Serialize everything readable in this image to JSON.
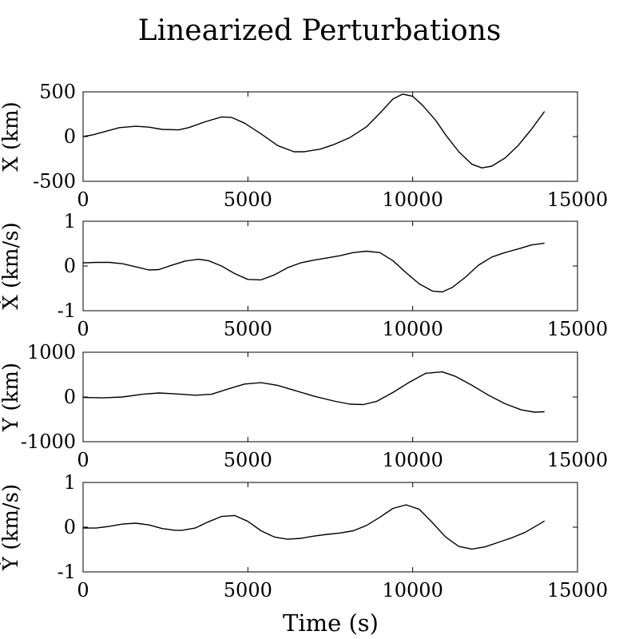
{
  "figure": {
    "title": "Linearized Perturbations",
    "xlabel": "Time (s)"
  },
  "chart_data": [
    {
      "type": "line",
      "ylabel": "X (km)",
      "xlim": [
        0,
        15000
      ],
      "ylim": [
        -500,
        500
      ],
      "xticks": [
        "0",
        "5000",
        "10000",
        "15000"
      ],
      "yticks": [
        "-500",
        "0",
        "500"
      ],
      "series": [
        {
          "color": "#000000",
          "x": [
            0,
            300,
            700,
            1100,
            1600,
            2000,
            2400,
            2900,
            3200,
            3700,
            4200,
            4500,
            4900,
            5400,
            5900,
            6400,
            6700,
            7200,
            7600,
            8100,
            8600,
            9000,
            9400,
            9700,
            10000,
            10300,
            10700,
            11000,
            11400,
            11800,
            12100,
            12400,
            12800,
            13200,
            13600,
            14000
          ],
          "y": [
            0,
            20,
            60,
            100,
            115,
            105,
            80,
            75,
            100,
            165,
            220,
            215,
            150,
            30,
            -100,
            -170,
            -170,
            -140,
            -90,
            -10,
            110,
            260,
            420,
            475,
            450,
            350,
            180,
            20,
            -170,
            -310,
            -350,
            -330,
            -240,
            -100,
            80,
            280
          ]
        }
      ]
    },
    {
      "type": "line",
      "ylabel": "Ẋ (km/s)",
      "xlim": [
        0,
        15000
      ],
      "ylim": [
        -1,
        1
      ],
      "xticks": [
        "0",
        "5000",
        "10000",
        "15000"
      ],
      "yticks": [
        "-1",
        "0",
        "1"
      ],
      "series": [
        {
          "color": "#000000",
          "x": [
            0,
            400,
            800,
            1200,
            1600,
            2000,
            2300,
            2700,
            3100,
            3500,
            3800,
            4200,
            4600,
            5000,
            5400,
            5800,
            6200,
            6600,
            7000,
            7400,
            7800,
            8200,
            8600,
            9000,
            9400,
            9800,
            10200,
            10600,
            10900,
            11200,
            11600,
            12000,
            12400,
            12800,
            13200,
            13600,
            14000
          ],
          "y": [
            0.07,
            0.08,
            0.08,
            0.05,
            -0.02,
            -0.09,
            -0.08,
            0.02,
            0.11,
            0.15,
            0.12,
            0.0,
            -0.17,
            -0.3,
            -0.31,
            -0.2,
            -0.04,
            0.07,
            0.13,
            0.18,
            0.23,
            0.3,
            0.33,
            0.3,
            0.12,
            -0.15,
            -0.4,
            -0.56,
            -0.58,
            -0.48,
            -0.25,
            0.02,
            0.2,
            0.3,
            0.38,
            0.47,
            0.51
          ]
        }
      ]
    },
    {
      "type": "line",
      "ylabel": "Y (km)",
      "xlim": [
        0,
        15000
      ],
      "ylim": [
        -1000,
        1000
      ],
      "xticks": [
        "0",
        "5000",
        "10000",
        "15000"
      ],
      "yticks": [
        "-1000",
        "0",
        "1000"
      ],
      "series": [
        {
          "color": "#000000",
          "x": [
            0,
            600,
            1200,
            1800,
            2300,
            2800,
            3400,
            3900,
            4400,
            4900,
            5400,
            5900,
            6400,
            7000,
            7600,
            8100,
            8500,
            8900,
            9400,
            9900,
            10400,
            10900,
            11300,
            11800,
            12300,
            12800,
            13300,
            13700,
            14000
          ],
          "y": [
            -10,
            -20,
            0,
            60,
            90,
            70,
            40,
            60,
            180,
            290,
            320,
            260,
            150,
            20,
            -90,
            -160,
            -170,
            -100,
            100,
            330,
            530,
            560,
            460,
            260,
            40,
            -150,
            -290,
            -340,
            -330
          ]
        }
      ]
    },
    {
      "type": "line",
      "ylabel": "Ẏ (km/s)",
      "xlim": [
        0,
        15000
      ],
      "ylim": [
        -1,
        1
      ],
      "xticks": [
        "0",
        "5000",
        "10000",
        "15000"
      ],
      "yticks": [
        "-1",
        "0",
        "1"
      ],
      "series": [
        {
          "color": "#000000",
          "x": [
            0,
            400,
            800,
            1200,
            1600,
            2000,
            2400,
            2800,
            3000,
            3400,
            3800,
            4200,
            4600,
            5000,
            5400,
            5800,
            6200,
            6600,
            7000,
            7400,
            7800,
            8200,
            8600,
            9000,
            9400,
            9800,
            10200,
            10600,
            11000,
            11400,
            11800,
            12200,
            12600,
            13000,
            13400,
            13800,
            14000
          ],
          "y": [
            -0.02,
            -0.02,
            0.02,
            0.07,
            0.09,
            0.05,
            -0.03,
            -0.07,
            -0.07,
            -0.02,
            0.12,
            0.24,
            0.26,
            0.13,
            -0.08,
            -0.22,
            -0.27,
            -0.25,
            -0.2,
            -0.16,
            -0.13,
            -0.08,
            0.04,
            0.22,
            0.42,
            0.5,
            0.4,
            0.1,
            -0.22,
            -0.43,
            -0.49,
            -0.44,
            -0.34,
            -0.24,
            -0.12,
            0.05,
            0.14
          ]
        }
      ]
    }
  ]
}
